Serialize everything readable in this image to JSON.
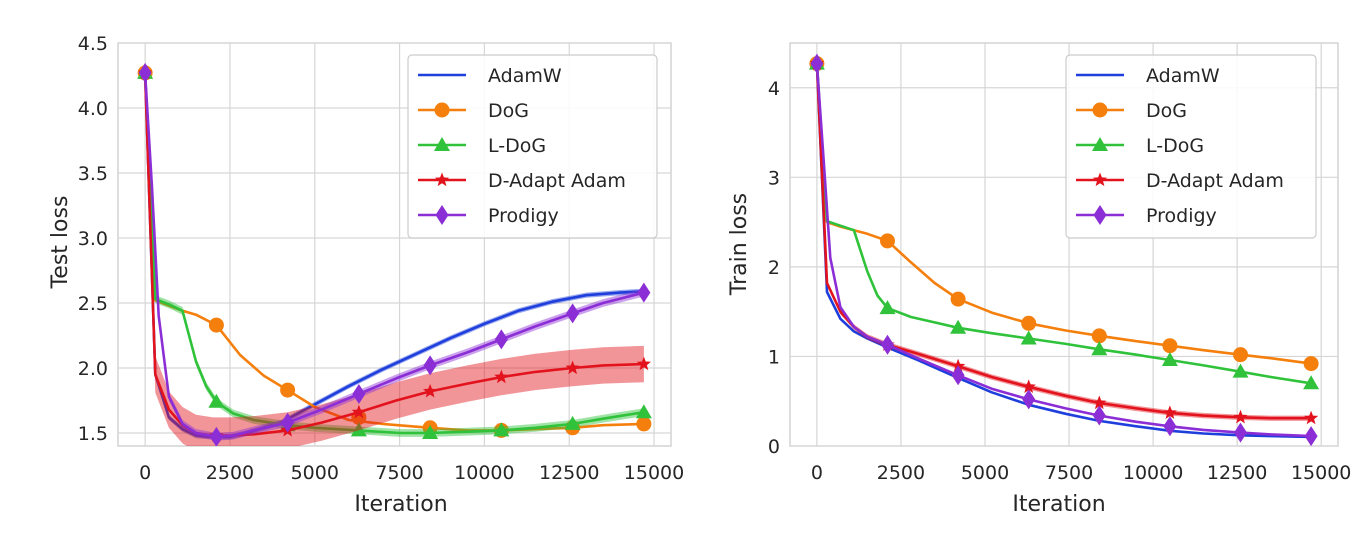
{
  "chart_data": [
    {
      "type": "line",
      "title": "",
      "xlabel": "Iteration",
      "ylabel": "Test loss",
      "xlim": [
        -800,
        15500
      ],
      "ylim": [
        1.4,
        4.5
      ],
      "xticks": [
        0,
        2500,
        5000,
        7500,
        10000,
        12500,
        15000
      ],
      "yticks": [
        1.5,
        2.0,
        2.5,
        3.0,
        3.5,
        4.0,
        4.5
      ],
      "ytick_labels": [
        "1.5",
        "2.0",
        "2.5",
        "3.0",
        "3.5",
        "4.0",
        "4.5"
      ],
      "grid": true,
      "legend_position": "top-right",
      "series": [
        {
          "name": "AdamW",
          "color": "#1f3fdc",
          "marker": "none",
          "x": [
            0,
            300,
            700,
            1100,
            1500,
            2000,
            2500,
            3000,
            4000,
            5000,
            6000,
            7000,
            8000,
            9000,
            10000,
            11000,
            12000,
            13000,
            14000,
            14700
          ],
          "y": [
            4.27,
            1.95,
            1.62,
            1.53,
            1.48,
            1.47,
            1.47,
            1.5,
            1.58,
            1.72,
            1.86,
            1.99,
            2.11,
            2.23,
            2.34,
            2.44,
            2.51,
            2.56,
            2.58,
            2.59
          ],
          "band": 0.02,
          "markers_x": [],
          "markers_y": []
        },
        {
          "name": "DoG",
          "color": "#f57f0c",
          "marker": "circle",
          "x": [
            0,
            300,
            700,
            1100,
            1500,
            2100,
            2800,
            3500,
            4200,
            5000,
            6000,
            7000,
            8400,
            9500,
            10500,
            11500,
            12600,
            13500,
            14700
          ],
          "y": [
            4.27,
            2.52,
            2.48,
            2.44,
            2.41,
            2.33,
            2.1,
            1.94,
            1.83,
            1.7,
            1.6,
            1.57,
            1.54,
            1.52,
            1.52,
            1.53,
            1.54,
            1.56,
            1.57
          ],
          "band": 0.0,
          "markers_x": [
            0,
            2100,
            4200,
            6300,
            8400,
            10500,
            12600,
            14700
          ],
          "markers_y": [
            4.27,
            2.33,
            1.83,
            1.62,
            1.54,
            1.52,
            1.54,
            1.57
          ]
        },
        {
          "name": "L-DoG",
          "color": "#2fc23a",
          "marker": "triangle",
          "x": [
            0,
            300,
            700,
            1100,
            1500,
            1800,
            2100,
            2600,
            3200,
            4200,
            5000,
            6300,
            7500,
            8400,
            9500,
            10500,
            11500,
            12600,
            13500,
            14700
          ],
          "y": [
            4.27,
            2.53,
            2.49,
            2.44,
            2.05,
            1.86,
            1.74,
            1.65,
            1.6,
            1.56,
            1.54,
            1.52,
            1.5,
            1.5,
            1.51,
            1.52,
            1.54,
            1.57,
            1.61,
            1.66
          ],
          "band": 0.03,
          "markers_x": [
            0,
            2100,
            4200,
            6300,
            8400,
            10500,
            12600,
            14700
          ],
          "markers_y": [
            4.27,
            1.74,
            1.56,
            1.52,
            1.5,
            1.52,
            1.57,
            1.66
          ]
        },
        {
          "name": "D-Adapt Adam",
          "color": "#e3131d",
          "marker": "star",
          "x": [
            0,
            300,
            700,
            1100,
            1500,
            2000,
            2500,
            3200,
            4200,
            5200,
            6300,
            7400,
            8400,
            9500,
            10500,
            11500,
            12600,
            13500,
            14700
          ],
          "y": [
            4.27,
            1.95,
            1.68,
            1.56,
            1.5,
            1.48,
            1.48,
            1.49,
            1.52,
            1.58,
            1.66,
            1.75,
            1.82,
            1.88,
            1.93,
            1.97,
            2.0,
            2.02,
            2.03
          ],
          "band": 0.14,
          "markers_x": [
            0,
            2100,
            4200,
            6300,
            8400,
            10500,
            12600,
            14700
          ],
          "markers_y": [
            4.27,
            1.48,
            1.52,
            1.66,
            1.82,
            1.93,
            2.0,
            2.03
          ]
        },
        {
          "name": "Prodigy",
          "color": "#8c2ed6",
          "marker": "diamond",
          "x": [
            0,
            200,
            400,
            700,
            1100,
            1500,
            2100,
            2600,
            3200,
            4200,
            5200,
            6300,
            7400,
            8400,
            9500,
            10500,
            11500,
            12600,
            13500,
            14700
          ],
          "y": [
            4.27,
            3.4,
            2.4,
            1.78,
            1.57,
            1.5,
            1.47,
            1.48,
            1.52,
            1.58,
            1.68,
            1.8,
            1.92,
            2.02,
            2.12,
            2.22,
            2.32,
            2.42,
            2.5,
            2.58
          ],
          "band": 0.03,
          "markers_x": [
            0,
            2100,
            4200,
            6300,
            8400,
            10500,
            12600,
            14700
          ],
          "markers_y": [
            4.27,
            1.47,
            1.58,
            1.8,
            2.02,
            2.22,
            2.42,
            2.58
          ]
        }
      ]
    },
    {
      "type": "line",
      "title": "",
      "xlabel": "Iteration",
      "ylabel": "Train loss",
      "xlim": [
        -800,
        15500
      ],
      "ylim": [
        0,
        4.5
      ],
      "xticks": [
        0,
        2500,
        5000,
        7500,
        10000,
        12500,
        15000
      ],
      "yticks": [
        0,
        1,
        2,
        3,
        4
      ],
      "ytick_labels": [
        "0",
        "1",
        "2",
        "3",
        "4"
      ],
      "grid": true,
      "legend_position": "top-right",
      "series": [
        {
          "name": "AdamW",
          "color": "#1f3fdc",
          "marker": "none",
          "x": [
            0,
            300,
            700,
            1100,
            1500,
            2100,
            3000,
            4200,
            5200,
            6300,
            7400,
            8400,
            9500,
            10500,
            11500,
            12600,
            13500,
            14700
          ],
          "y": [
            4.27,
            1.72,
            1.42,
            1.28,
            1.2,
            1.1,
            0.96,
            0.76,
            0.6,
            0.46,
            0.36,
            0.28,
            0.22,
            0.17,
            0.14,
            0.12,
            0.11,
            0.1
          ],
          "band": 0.01,
          "markers_x": [],
          "markers_y": []
        },
        {
          "name": "DoG",
          "color": "#f57f0c",
          "marker": "circle",
          "x": [
            0,
            300,
            700,
            1100,
            1500,
            2100,
            2800,
            3500,
            4200,
            5200,
            6300,
            7400,
            8400,
            9500,
            10500,
            11500,
            12600,
            13500,
            14700
          ],
          "y": [
            4.27,
            2.5,
            2.45,
            2.41,
            2.37,
            2.29,
            2.05,
            1.82,
            1.64,
            1.49,
            1.37,
            1.29,
            1.23,
            1.17,
            1.12,
            1.07,
            1.02,
            0.98,
            0.92
          ],
          "band": 0.0,
          "markers_x": [
            0,
            2100,
            4200,
            6300,
            8400,
            10500,
            12600,
            14700
          ],
          "markers_y": [
            4.27,
            2.29,
            1.64,
            1.37,
            1.23,
            1.12,
            1.02,
            0.92
          ]
        },
        {
          "name": "L-DoG",
          "color": "#2fc23a",
          "marker": "triangle",
          "x": [
            0,
            300,
            700,
            1100,
            1500,
            1800,
            2100,
            2800,
            3500,
            4200,
            5200,
            6300,
            7400,
            8400,
            9500,
            10500,
            11500,
            12600,
            13500,
            14700
          ],
          "y": [
            4.27,
            2.51,
            2.46,
            2.41,
            1.95,
            1.68,
            1.54,
            1.44,
            1.38,
            1.32,
            1.26,
            1.2,
            1.14,
            1.08,
            1.02,
            0.96,
            0.9,
            0.83,
            0.77,
            0.7
          ],
          "band": 0.01,
          "markers_x": [
            0,
            2100,
            4200,
            6300,
            8400,
            10500,
            12600,
            14700
          ],
          "markers_y": [
            4.27,
            1.54,
            1.32,
            1.2,
            1.08,
            0.96,
            0.83,
            0.7
          ]
        },
        {
          "name": "D-Adapt Adam",
          "color": "#e3131d",
          "marker": "star",
          "x": [
            0,
            300,
            700,
            1100,
            1500,
            2100,
            3000,
            4200,
            5200,
            6300,
            7400,
            8400,
            9500,
            10500,
            11500,
            12600,
            13500,
            14700
          ],
          "y": [
            4.27,
            1.82,
            1.5,
            1.33,
            1.22,
            1.13,
            1.03,
            0.89,
            0.77,
            0.66,
            0.56,
            0.48,
            0.42,
            0.37,
            0.34,
            0.32,
            0.31,
            0.31
          ],
          "band": 0.03,
          "markers_x": [
            0,
            2100,
            4200,
            6300,
            8400,
            10500,
            12600,
            14700
          ],
          "markers_y": [
            4.27,
            1.13,
            0.89,
            0.66,
            0.48,
            0.37,
            0.32,
            0.31
          ]
        },
        {
          "name": "Prodigy",
          "color": "#8c2ed6",
          "marker": "diamond",
          "x": [
            0,
            200,
            400,
            700,
            1100,
            1500,
            2100,
            3000,
            4200,
            5200,
            6300,
            7400,
            8400,
            9500,
            10500,
            11500,
            12600,
            13500,
            14700
          ],
          "y": [
            4.27,
            3.2,
            2.1,
            1.55,
            1.33,
            1.22,
            1.13,
            0.98,
            0.79,
            0.64,
            0.52,
            0.42,
            0.34,
            0.27,
            0.22,
            0.18,
            0.15,
            0.13,
            0.11
          ],
          "band": 0.01,
          "markers_x": [
            0,
            2100,
            4200,
            6300,
            8400,
            10500,
            12600,
            14700
          ],
          "markers_y": [
            4.27,
            1.13,
            0.79,
            0.52,
            0.34,
            0.22,
            0.15,
            0.11
          ]
        }
      ]
    }
  ]
}
